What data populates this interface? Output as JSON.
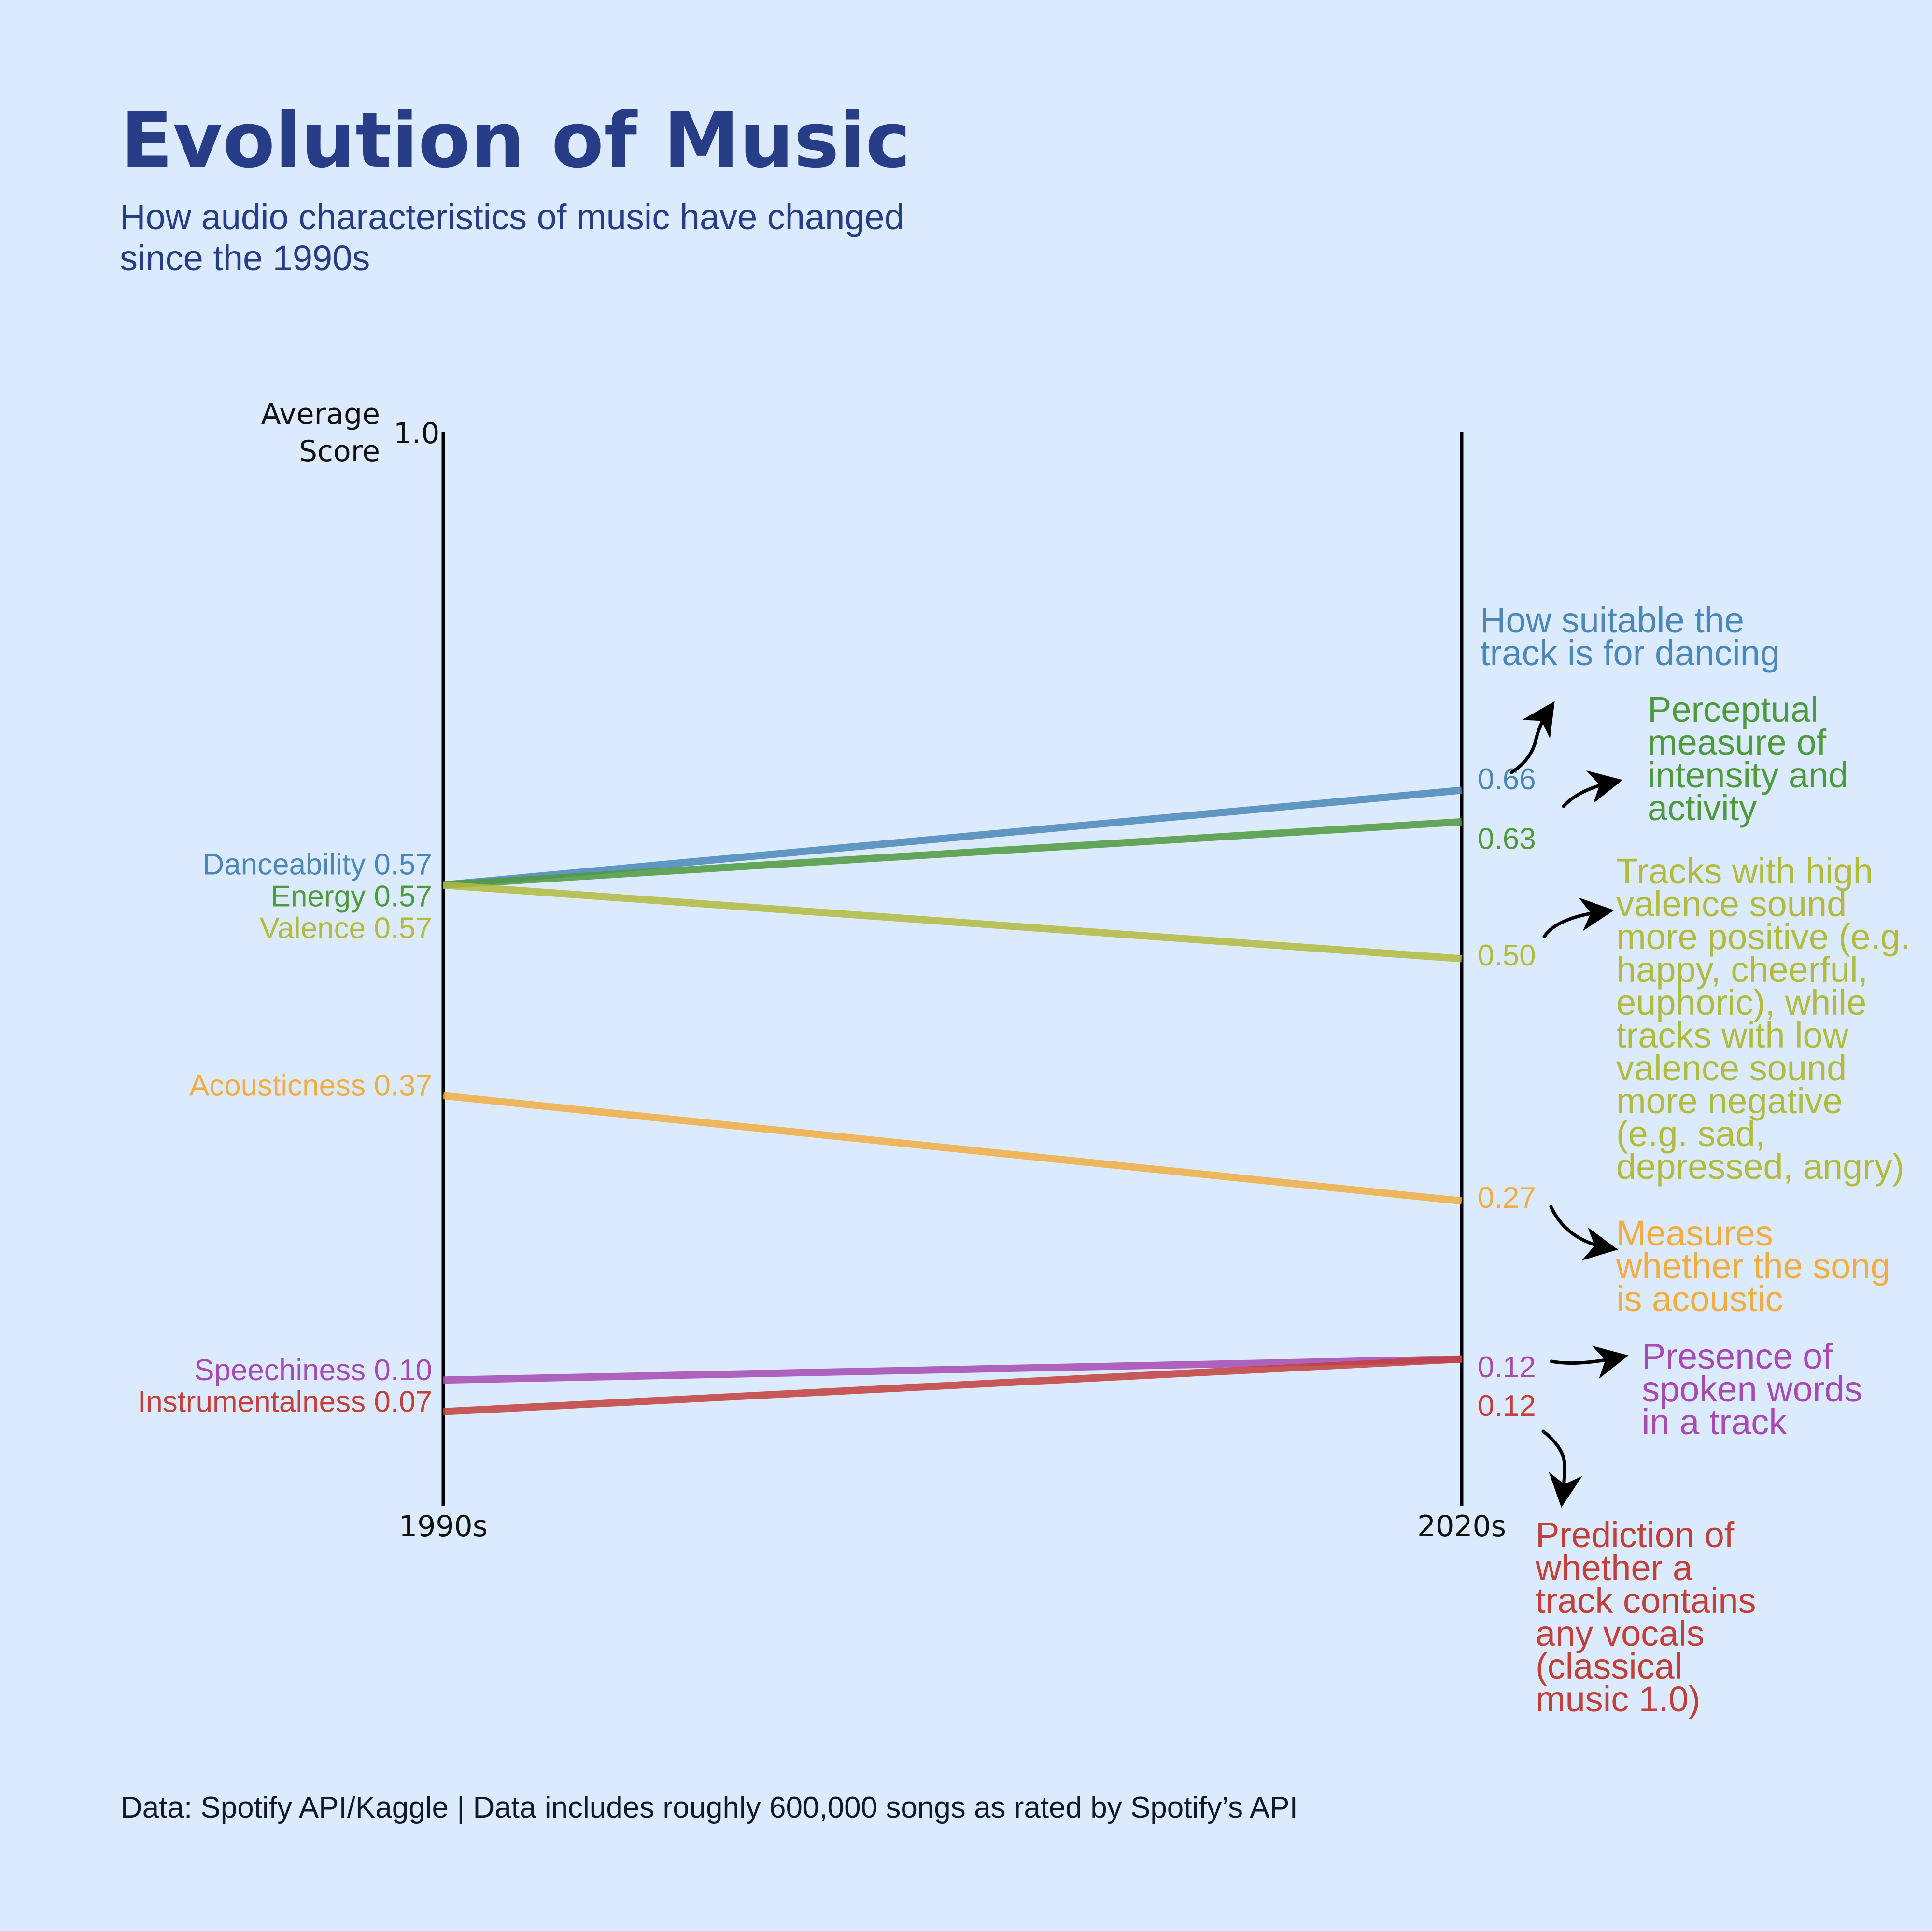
{
  "title": "Evolution of Music",
  "subtitle": [
    "How audio characteristics of music have changed",
    "since the 1990s"
  ],
  "caption": "Data: Spotify API/Kaggle | Data includes roughly 600,000 songs as rated by Spotify’s API",
  "chart_data": {
    "type": "line",
    "subtype": "slope",
    "x": [
      "1990s",
      "2020s"
    ],
    "ylabel": [
      "Average",
      "Score"
    ],
    "ylim": [
      0,
      1.0
    ],
    "ytick_label": "1.0",
    "grid": false,
    "series": [
      {
        "name": "Danceability",
        "values": [
          0.57,
          0.66
        ],
        "start_label": "0.57",
        "end_label": "0.66",
        "color": "#4b88b8",
        "description": [
          "How suitable the",
          "track is for dancing"
        ]
      },
      {
        "name": "Energy",
        "values": [
          0.57,
          0.63
        ],
        "start_label": "0.57",
        "end_label": "0.63",
        "color": "#4f9a3e",
        "description": [
          "Perceptual",
          "measure of",
          "intensity and",
          "activity"
        ]
      },
      {
        "name": "Valence",
        "values": [
          0.57,
          0.5
        ],
        "start_label": "0.57",
        "end_label": "0.50",
        "color": "#b2bb3e",
        "description": [
          "Tracks with high",
          "valence sound",
          "more positive (e.g.",
          "happy, cheerful,",
          "euphoric), while",
          "tracks with low",
          "valence sound",
          "more negative",
          "(e.g. sad,",
          "depressed, angry)"
        ]
      },
      {
        "name": "Acousticness",
        "values": [
          0.37,
          0.27
        ],
        "start_label": "0.37",
        "end_label": "0.27",
        "color": "#f2ad42",
        "description": [
          "Measures",
          "whether the song",
          "is acoustic"
        ]
      },
      {
        "name": "Speechiness",
        "values": [
          0.1,
          0.12
        ],
        "start_label": "0.10",
        "end_label": "0.12",
        "color": "#a74ab2",
        "description": [
          "Presence of",
          "spoken words",
          "in a track"
        ]
      },
      {
        "name": "Instrumentalness",
        "values": [
          0.07,
          0.12
        ],
        "start_label": "0.07",
        "end_label": "0.12",
        "color": "#c33f3a",
        "description": [
          "Prediction of",
          "whether a",
          "track contains",
          "any vocals",
          "(classical",
          "music 1.0)"
        ]
      }
    ]
  }
}
